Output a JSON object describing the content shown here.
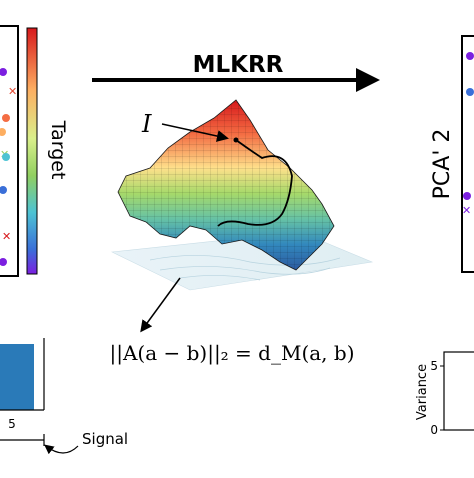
{
  "title": "MLKRR",
  "colorbar_label": "Target",
  "point_label": "I",
  "equation": "||A(a − b)||₂ = d_M(a, b)",
  "right_axis_label": "PCA' 2",
  "variance_label": "Variance",
  "variance_tick": "5",
  "variance_tick_zero": "0",
  "bar_axis_tick": "5",
  "signal_label": "Signal",
  "colors": {
    "arrow": "#000000",
    "bar": "#2a7ab8",
    "colorbar_top": "#d7191c",
    "colorbar_mid": "#fdae61",
    "colorbar_green": "#91cf60",
    "colorbar_cyan": "#4dc3d4",
    "colorbar_bottom": "#7b1fe0"
  }
}
